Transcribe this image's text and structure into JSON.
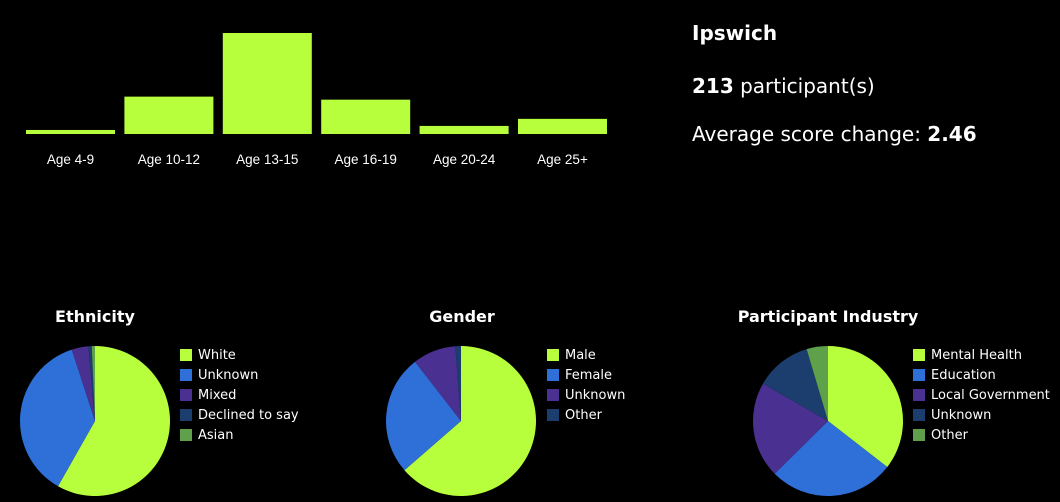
{
  "info": {
    "location": "Ipswich",
    "participants_value": "213",
    "participants_suffix": " participant(s)",
    "avg_label": "Average score change: ",
    "avg_value": "2.46"
  },
  "chart_data": [
    {
      "type": "bar",
      "categories": [
        "Age 4-9",
        "Age 10-12",
        "Age 13-15",
        "Age 16-19",
        "Age 20-24",
        "Age 25+"
      ],
      "values": [
        4,
        37,
        100,
        34,
        8,
        15
      ],
      "ylim": [
        0,
        100
      ],
      "color": "#b7ff3c",
      "grid": false
    },
    {
      "type": "pie",
      "title": "Ethnicity",
      "labels": [
        "White",
        "Unknown",
        "Mixed",
        "Declined to say",
        "Asian"
      ],
      "values": [
        58.2,
        36.8,
        3.6,
        0.7,
        0.7
      ],
      "colors": [
        "#b7ff3c",
        "#2f6fd8",
        "#4a3090",
        "#1c3e6e",
        "#5fa04a"
      ],
      "legend": "right"
    },
    {
      "type": "pie",
      "title": "Gender",
      "labels": [
        "Male",
        "Female",
        "Unknown",
        "Other"
      ],
      "values": [
        63.6,
        25.9,
        9.3,
        1.2
      ],
      "colors": [
        "#b7ff3c",
        "#2f6fd8",
        "#4a3090",
        "#1c3e6e"
      ],
      "legend": "right"
    },
    {
      "type": "pie",
      "title": "Participant Industry",
      "labels": [
        "Mental Health",
        "Education",
        "Local Government",
        "Unknown",
        "Other"
      ],
      "values": [
        35.5,
        27.1,
        20.7,
        12.1,
        4.6
      ],
      "colors": [
        "#b7ff3c",
        "#2f6fd8",
        "#4a3090",
        "#1c3e6e",
        "#5fa04a"
      ],
      "legend": "right"
    }
  ]
}
